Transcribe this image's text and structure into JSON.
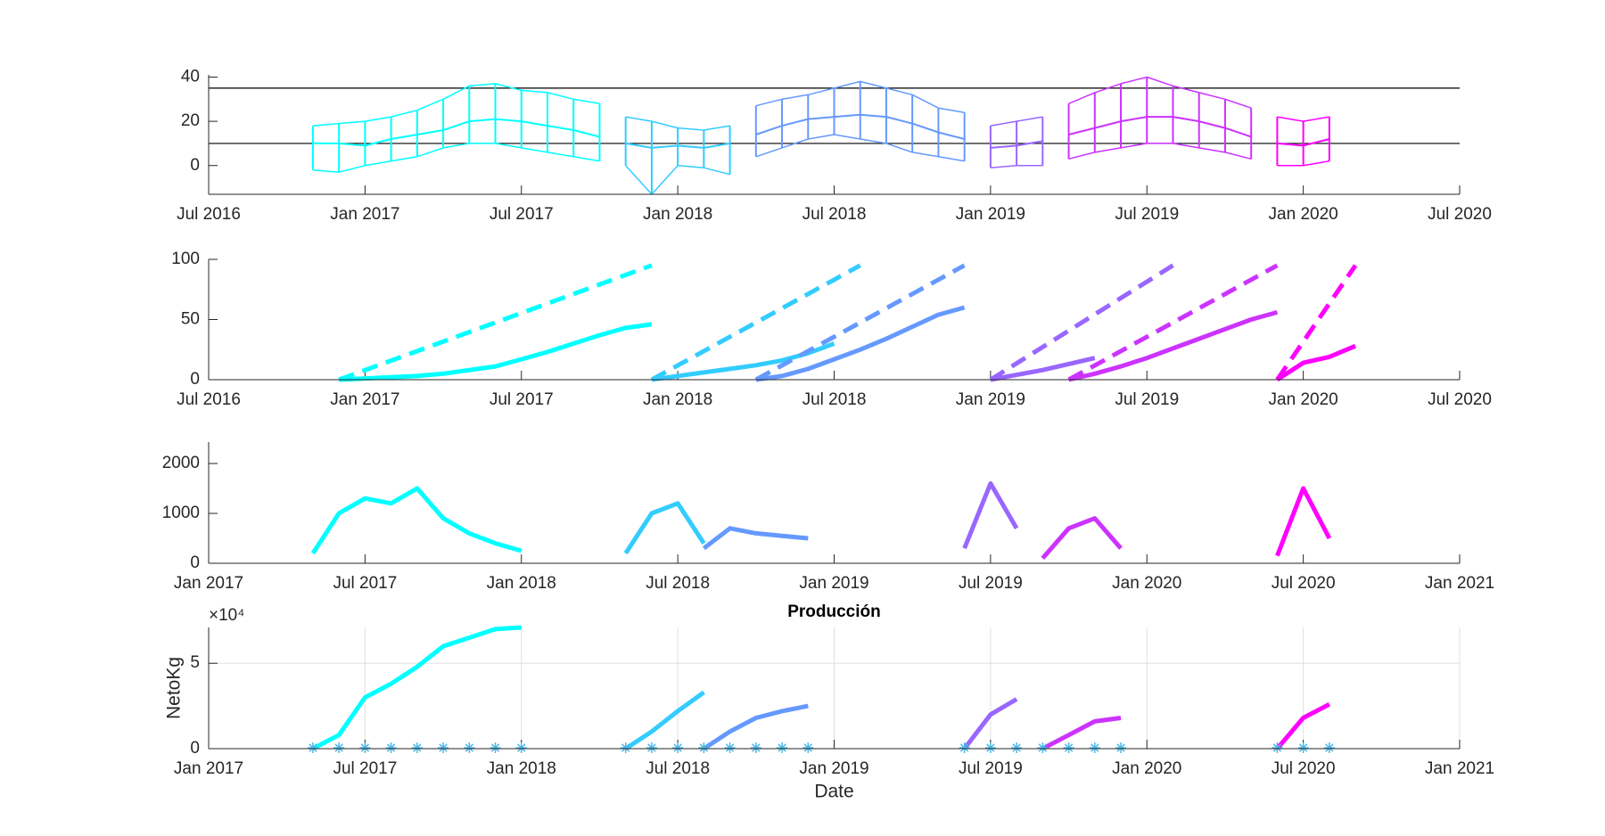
{
  "chart_data": [
    {
      "type": "range",
      "xlim": [
        "2016-07",
        "2020-07"
      ],
      "xticks": [
        {
          "value": "2016-07",
          "label": "Jul 2016"
        },
        {
          "value": "2017-01",
          "label": "Jan 2017"
        },
        {
          "value": "2017-07",
          "label": "Jul 2017"
        },
        {
          "value": "2018-01",
          "label": "Jan 2018"
        },
        {
          "value": "2018-07",
          "label": "Jul 2018"
        },
        {
          "value": "2019-01",
          "label": "Jan 2019"
        },
        {
          "value": "2019-07",
          "label": "Jul 2019"
        },
        {
          "value": "2020-01",
          "label": "Jan 2020"
        },
        {
          "value": "2020-07",
          "label": "Jul 2020"
        }
      ],
      "ylim": [
        -13,
        41
      ],
      "yticks": [
        0,
        20,
        40
      ],
      "hlines": [
        35,
        10
      ],
      "series": [
        {
          "color": "#00ffff",
          "x": [
            "2016-11",
            "2016-12",
            "2017-01",
            "2017-02",
            "2017-03",
            "2017-04",
            "2017-05",
            "2017-06",
            "2017-07",
            "2017-08",
            "2017-09",
            "2017-10"
          ],
          "values": [
            10,
            10,
            9,
            12,
            14,
            16,
            20,
            21,
            20,
            18,
            16,
            13
          ],
          "low": [
            -2,
            -3,
            0,
            2,
            4,
            8,
            10,
            10,
            8,
            6,
            4,
            2
          ],
          "high": [
            18,
            19,
            20,
            22,
            25,
            30,
            36,
            37,
            34,
            33,
            30,
            28
          ]
        },
        {
          "color": "#33ccff",
          "x": [
            "2017-11",
            "2017-12",
            "2018-01",
            "2018-02",
            "2018-03"
          ],
          "values": [
            10,
            8,
            9,
            8,
            10
          ],
          "low": [
            0,
            -13,
            0,
            -1,
            -4
          ],
          "high": [
            22,
            20,
            17,
            16,
            18
          ]
        },
        {
          "color": "#6699ff",
          "x": [
            "2018-04",
            "2018-05",
            "2018-06",
            "2018-07",
            "2018-08",
            "2018-09",
            "2018-10",
            "2018-11",
            "2018-12"
          ],
          "values": [
            14,
            18,
            21,
            22,
            23,
            22,
            19,
            15,
            12
          ],
          "low": [
            4,
            8,
            12,
            14,
            12,
            10,
            6,
            4,
            2
          ],
          "high": [
            27,
            30,
            32,
            35,
            38,
            35,
            32,
            26,
            24
          ]
        },
        {
          "color": "#9966ff",
          "x": [
            "2019-01",
            "2019-02",
            "2019-03"
          ],
          "values": [
            8,
            9,
            11
          ],
          "low": [
            -1,
            0,
            0
          ],
          "high": [
            18,
            20,
            22
          ]
        },
        {
          "color": "#cc33ff",
          "x": [
            "2019-04",
            "2019-05",
            "2019-06",
            "2019-07",
            "2019-08",
            "2019-09",
            "2019-10",
            "2019-11"
          ],
          "values": [
            14,
            17,
            20,
            22,
            22,
            20,
            17,
            13
          ],
          "low": [
            3,
            6,
            8,
            10,
            10,
            8,
            6,
            3
          ],
          "high": [
            28,
            33,
            37,
            40,
            36,
            33,
            30,
            26
          ]
        },
        {
          "color": "#ff00ff",
          "x": [
            "2019-12",
            "2020-01",
            "2020-02"
          ],
          "values": [
            10,
            9,
            12
          ],
          "low": [
            0,
            0,
            2
          ],
          "high": [
            22,
            20,
            22
          ]
        }
      ]
    },
    {
      "type": "line",
      "xlim": [
        "2016-07",
        "2020-07"
      ],
      "xticks": [
        {
          "value": "2016-07",
          "label": "Jul 2016"
        },
        {
          "value": "2017-01",
          "label": "Jan 2017"
        },
        {
          "value": "2017-07",
          "label": "Jul 2017"
        },
        {
          "value": "2018-01",
          "label": "Jan 2018"
        },
        {
          "value": "2018-07",
          "label": "Jul 2018"
        },
        {
          "value": "2019-01",
          "label": "Jan 2019"
        },
        {
          "value": "2019-07",
          "label": "Jul 2019"
        },
        {
          "value": "2020-01",
          "label": "Jan 2020"
        },
        {
          "value": "2020-07",
          "label": "Jul 2020"
        }
      ],
      "ylim": [
        0,
        100
      ],
      "yticks": [
        0,
        50,
        100
      ],
      "series": [
        {
          "color": "#00ffff",
          "line_style": "dashed",
          "x": [
            "2016-12",
            "2017-12"
          ],
          "values": [
            0,
            95
          ]
        },
        {
          "color": "#00ffff",
          "line_style": "solid",
          "x": [
            "2016-12",
            "2017-01",
            "2017-02",
            "2017-03",
            "2017-04",
            "2017-05",
            "2017-06",
            "2017-07",
            "2017-08",
            "2017-09",
            "2017-10",
            "2017-11",
            "2017-12"
          ],
          "values": [
            0,
            1,
            2,
            3,
            5,
            8,
            11,
            17,
            23,
            30,
            37,
            43,
            46
          ]
        },
        {
          "color": "#33ccff",
          "line_style": "dashed",
          "x": [
            "2017-12",
            "2018-08"
          ],
          "values": [
            0,
            95
          ]
        },
        {
          "color": "#33ccff",
          "line_style": "solid",
          "x": [
            "2017-12",
            "2018-01",
            "2018-02",
            "2018-03",
            "2018-04",
            "2018-05",
            "2018-06",
            "2018-07"
          ],
          "values": [
            0,
            3,
            6,
            9,
            12,
            16,
            22,
            30
          ]
        },
        {
          "color": "#6699ff",
          "line_style": "dashed",
          "x": [
            "2018-04",
            "2018-12"
          ],
          "values": [
            0,
            95
          ]
        },
        {
          "color": "#6699ff",
          "line_style": "solid",
          "x": [
            "2018-04",
            "2018-05",
            "2018-06",
            "2018-07",
            "2018-08",
            "2018-09",
            "2018-10",
            "2018-11",
            "2018-12"
          ],
          "values": [
            0,
            3,
            9,
            17,
            25,
            34,
            44,
            54,
            60
          ]
        },
        {
          "color": "#9966ff",
          "line_style": "dashed",
          "x": [
            "2019-01",
            "2019-08"
          ],
          "values": [
            0,
            95
          ]
        },
        {
          "color": "#9966ff",
          "line_style": "solid",
          "x": [
            "2019-01",
            "2019-02",
            "2019-03",
            "2019-04",
            "2019-05"
          ],
          "values": [
            0,
            4,
            8,
            13,
            18
          ]
        },
        {
          "color": "#cc33ff",
          "line_style": "dashed",
          "x": [
            "2019-04",
            "2019-12"
          ],
          "values": [
            0,
            95
          ]
        },
        {
          "color": "#cc33ff",
          "line_style": "solid",
          "x": [
            "2019-04",
            "2019-05",
            "2019-06",
            "2019-07",
            "2019-08",
            "2019-09",
            "2019-10",
            "2019-11",
            "2019-12"
          ],
          "values": [
            0,
            5,
            11,
            18,
            26,
            34,
            42,
            50,
            56
          ]
        },
        {
          "color": "#ff00ff",
          "line_style": "dashed",
          "x": [
            "2019-12",
            "2020-03"
          ],
          "values": [
            0,
            95
          ]
        },
        {
          "color": "#ff00ff",
          "line_style": "solid",
          "x": [
            "2019-12",
            "2020-01",
            "2020-02",
            "2020-03"
          ],
          "values": [
            0,
            14,
            19,
            28
          ]
        }
      ]
    },
    {
      "type": "line",
      "xlim": [
        "2017-01",
        "2021-01"
      ],
      "xticks": [
        {
          "value": "2017-01",
          "label": "Jan 2017"
        },
        {
          "value": "2017-07",
          "label": "Jul 2017"
        },
        {
          "value": "2018-01",
          "label": "Jan 2018"
        },
        {
          "value": "2018-07",
          "label": "Jul 2018"
        },
        {
          "value": "2019-01",
          "label": "Jan 2019"
        },
        {
          "value": "2019-07",
          "label": "Jul 2019"
        },
        {
          "value": "2020-01",
          "label": "Jan 2020"
        },
        {
          "value": "2020-07",
          "label": "Jul 2020"
        },
        {
          "value": "2021-01",
          "label": "Jan 2021"
        }
      ],
      "ylim": [
        0,
        2430
      ],
      "yticks": [
        0,
        1000,
        2000
      ],
      "series": [
        {
          "color": "#00ffff",
          "line_style": "solid",
          "x": [
            "2017-05",
            "2017-06",
            "2017-07",
            "2017-08",
            "2017-09",
            "2017-10",
            "2017-11",
            "2017-12",
            "2018-01"
          ],
          "values": [
            200,
            1000,
            1300,
            1200,
            1500,
            900,
            600,
            400,
            250
          ]
        },
        {
          "color": "#33ccff",
          "line_style": "solid",
          "x": [
            "2018-05",
            "2018-06",
            "2018-07",
            "2018-08"
          ],
          "values": [
            200,
            1000,
            1200,
            400
          ]
        },
        {
          "color": "#6699ff",
          "line_style": "solid",
          "x": [
            "2018-08",
            "2018-09",
            "2018-10",
            "2018-11",
            "2018-12"
          ],
          "values": [
            300,
            700,
            600,
            550,
            500
          ]
        },
        {
          "color": "#9966ff",
          "line_style": "solid",
          "x": [
            "2019-06",
            "2019-07",
            "2019-08"
          ],
          "values": [
            300,
            1600,
            700
          ]
        },
        {
          "color": "#cc33ff",
          "line_style": "solid",
          "x": [
            "2019-09",
            "2019-10",
            "2019-11",
            "2019-12"
          ],
          "values": [
            100,
            700,
            900,
            300
          ]
        },
        {
          "color": "#ff00ff",
          "line_style": "solid",
          "x": [
            "2020-06",
            "2020-07",
            "2020-08"
          ],
          "values": [
            150,
            1500,
            500
          ]
        }
      ]
    },
    {
      "type": "line",
      "title": "Producción",
      "xlabel": "Date",
      "ylabel": "NetoKg",
      "y_multiplier": "×10⁴",
      "grid": true,
      "xlim": [
        "2017-01",
        "2021-01"
      ],
      "xticks": [
        {
          "value": "2017-01",
          "label": "Jan 2017"
        },
        {
          "value": "2017-07",
          "label": "Jul 2017"
        },
        {
          "value": "2018-01",
          "label": "Jan 2018"
        },
        {
          "value": "2018-07",
          "label": "Jul 2018"
        },
        {
          "value": "2019-01",
          "label": "Jan 2019"
        },
        {
          "value": "2019-07",
          "label": "Jul 2019"
        },
        {
          "value": "2020-01",
          "label": "Jan 2020"
        },
        {
          "value": "2020-07",
          "label": "Jul 2020"
        },
        {
          "value": "2021-01",
          "label": "Jan 2021"
        }
      ],
      "ylim": [
        0,
        71000
      ],
      "yticks": [
        0,
        {
          "value": 50000,
          "label": "5"
        }
      ],
      "series": [
        {
          "color": "#00ffff",
          "line_style": "solid",
          "x": [
            "2017-05",
            "2017-06",
            "2017-07",
            "2017-08",
            "2017-09",
            "2017-10",
            "2017-11",
            "2017-12",
            "2018-01"
          ],
          "values": [
            0,
            8000,
            30000,
            38000,
            48000,
            60000,
            65000,
            70000,
            71000
          ]
        },
        {
          "color": "#33ccff",
          "line_style": "solid",
          "x": [
            "2018-05",
            "2018-06",
            "2018-07",
            "2018-08"
          ],
          "values": [
            0,
            10000,
            22000,
            33000
          ]
        },
        {
          "color": "#6699ff",
          "line_style": "solid",
          "x": [
            "2018-08",
            "2018-09",
            "2018-10",
            "2018-11",
            "2018-12"
          ],
          "values": [
            0,
            10000,
            18000,
            22000,
            25000
          ]
        },
        {
          "color": "#9966ff",
          "line_style": "solid",
          "x": [
            "2019-06",
            "2019-07",
            "2019-08"
          ],
          "values": [
            0,
            20000,
            29000
          ]
        },
        {
          "color": "#cc33ff",
          "line_style": "solid",
          "x": [
            "2019-09",
            "2019-10",
            "2019-11",
            "2019-12"
          ],
          "values": [
            0,
            8000,
            16000,
            18000
          ]
        },
        {
          "color": "#ff00ff",
          "line_style": "solid",
          "x": [
            "2020-06",
            "2020-07",
            "2020-08"
          ],
          "values": [
            0,
            18000,
            26000
          ]
        },
        {
          "color": "#4db8e8",
          "line_style": "none",
          "marker": "*",
          "x": [
            "2017-05",
            "2017-06",
            "2017-07",
            "2017-08",
            "2017-09",
            "2017-10",
            "2017-11",
            "2017-12",
            "2018-01",
            "2018-05",
            "2018-06",
            "2018-07",
            "2018-08",
            "2018-09",
            "2018-10",
            "2018-11",
            "2018-12",
            "2019-06",
            "2019-07",
            "2019-08",
            "2019-09",
            "2019-10",
            "2019-11",
            "2019-12",
            "2020-06",
            "2020-07",
            "2020-08"
          ],
          "values": [
            500,
            500,
            500,
            500,
            500,
            500,
            500,
            500,
            500,
            500,
            500,
            500,
            500,
            500,
            500,
            500,
            500,
            500,
            500,
            500,
            500,
            500,
            500,
            500,
            500,
            500,
            500
          ]
        }
      ]
    }
  ]
}
